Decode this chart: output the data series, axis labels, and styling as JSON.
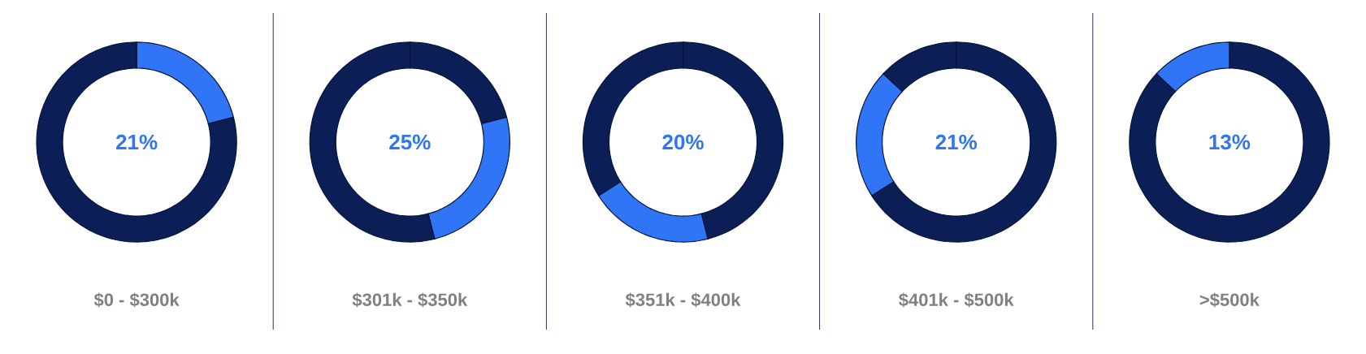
{
  "chart_data": [
    {
      "type": "donut",
      "xlabel": "$0 - $300k",
      "annotations": [
        "21%"
      ],
      "categories": [
        null,
        null
      ],
      "values": [
        21,
        79
      ],
      "colors": [
        "#2f75f5",
        "#0b1f56"
      ]
    },
    {
      "type": "donut",
      "xlabel": "$301k - $350k",
      "annotations": [
        "25%"
      ],
      "categories": [
        null,
        null,
        null
      ],
      "values": [
        21,
        25,
        54
      ],
      "colors": [
        "#0b1f56",
        "#2f75f5",
        "#0b1f56"
      ]
    },
    {
      "type": "donut",
      "xlabel": "$351k - $400k",
      "annotations": [
        "20%"
      ],
      "categories": [
        null,
        null,
        null
      ],
      "values": [
        46,
        20,
        34
      ],
      "colors": [
        "#0b1f56",
        "#2f75f5",
        "#0b1f56"
      ]
    },
    {
      "type": "donut",
      "xlabel": "$401k - $500k",
      "annotations": [
        "21%"
      ],
      "categories": [
        null,
        null,
        null
      ],
      "values": [
        66,
        21,
        13
      ],
      "colors": [
        "#0b1f56",
        "#2f75f5",
        "#0b1f56"
      ]
    },
    {
      "type": "donut",
      "xlabel": ">$500k",
      "annotations": [
        "13%"
      ],
      "categories": [
        null,
        null
      ],
      "values": [
        87,
        13
      ],
      "colors": [
        "#0b1f56",
        "#2f75f5"
      ]
    }
  ]
}
